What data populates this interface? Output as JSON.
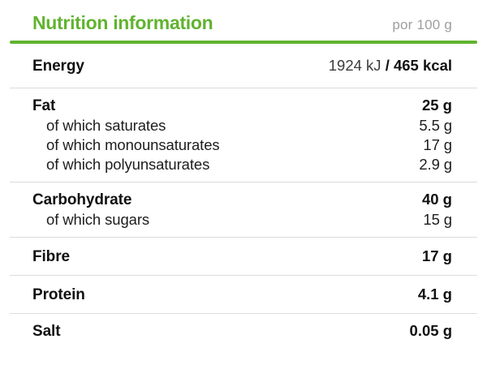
{
  "header": {
    "title": "Nutrition information",
    "per": "por 100 g"
  },
  "colors": {
    "accent_green": "#61b32f",
    "muted_gray": "#9e9e9e",
    "divider_gray": "#dcdcdc"
  },
  "table": {
    "rows": [
      {
        "label": "Energy",
        "value_plain": "1924 kJ",
        "value": "/ 465 kcal",
        "size": "row",
        "subs": []
      },
      {
        "label": "Fat",
        "value": "25 g",
        "size": "group",
        "subs": [
          {
            "label": "of which saturates",
            "value": "5.5 g"
          },
          {
            "label": "of which monounsaturates",
            "value": "17 g"
          },
          {
            "label": "of which polyunsaturates",
            "value": "2.9 g"
          }
        ]
      },
      {
        "label": "Carbohydrate",
        "value": "40 g",
        "size": "group",
        "subs": [
          {
            "label": "of which sugars",
            "value": "15 g"
          }
        ]
      },
      {
        "label": "Fibre",
        "value": "17 g",
        "size": "slim",
        "subs": []
      },
      {
        "label": "Protein",
        "value": "4.1 g",
        "size": "slim",
        "subs": []
      },
      {
        "label": "Salt",
        "value": "0.05 g",
        "size": "last",
        "subs": []
      }
    ]
  }
}
